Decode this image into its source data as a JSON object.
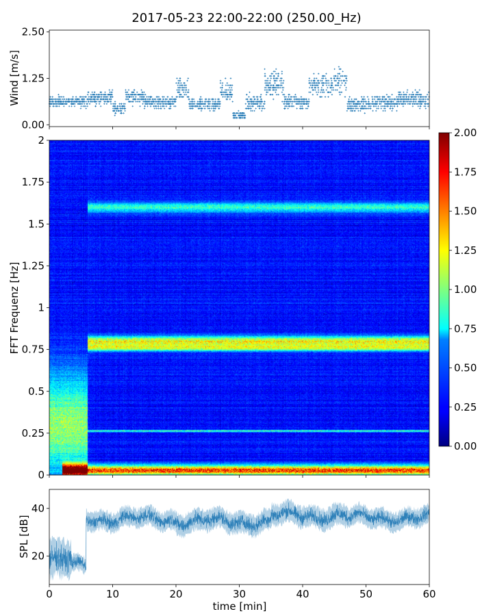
{
  "title": "2017-05-23 22:00-22:00 (250.00_Hz)",
  "chart_data": [
    {
      "type": "scatter",
      "name": "wind",
      "ylabel": "Wind [m/s]",
      "xlim": [
        0,
        60
      ],
      "ylim": [
        -0.05,
        2.55
      ],
      "yticks": [
        0.0,
        1.25,
        2.5
      ],
      "ytick_labels": [
        "0.00",
        "1.25",
        "2.50"
      ],
      "marker_color": "#1f77b4",
      "marker": "+",
      "resolution_m_s": 0.0625,
      "segments": [
        {
          "x": [
            0,
            6
          ],
          "mean": 0.62,
          "spread": 0.22
        },
        {
          "x": [
            6,
            10
          ],
          "mean": 0.72,
          "spread": 0.28
        },
        {
          "x": [
            10,
            12
          ],
          "mean": 0.45,
          "spread": 0.25
        },
        {
          "x": [
            12,
            15
          ],
          "mean": 0.75,
          "spread": 0.3
        },
        {
          "x": [
            15,
            20
          ],
          "mean": 0.6,
          "spread": 0.25
        },
        {
          "x": [
            20,
            22
          ],
          "mean": 0.95,
          "spread": 0.4
        },
        {
          "x": [
            22,
            27
          ],
          "mean": 0.55,
          "spread": 0.25
        },
        {
          "x": [
            27,
            29
          ],
          "mean": 0.9,
          "spread": 0.45
        },
        {
          "x": [
            29,
            31
          ],
          "mean": 0.25,
          "spread": 0.15
        },
        {
          "x": [
            31,
            34
          ],
          "mean": 0.6,
          "spread": 0.3
        },
        {
          "x": [
            34,
            37
          ],
          "mean": 1.1,
          "spread": 0.55
        },
        {
          "x": [
            37,
            41
          ],
          "mean": 0.6,
          "spread": 0.3
        },
        {
          "x": [
            41,
            45
          ],
          "mean": 1.05,
          "spread": 0.45
        },
        {
          "x": [
            45,
            47
          ],
          "mean": 1.2,
          "spread": 0.55
        },
        {
          "x": [
            47,
            50
          ],
          "mean": 0.55,
          "spread": 0.3
        },
        {
          "x": [
            50,
            55
          ],
          "mean": 0.6,
          "spread": 0.3
        },
        {
          "x": [
            55,
            58
          ],
          "mean": 0.7,
          "spread": 0.35
        },
        {
          "x": [
            58,
            60
          ],
          "mean": 0.65,
          "spread": 0.35
        }
      ]
    },
    {
      "type": "heatmap",
      "name": "spectrogram",
      "ylabel": "FFT Frequenz [Hz]",
      "xlim": [
        0,
        60
      ],
      "ylim": [
        0,
        2
      ],
      "yticks": [
        0,
        0.25,
        0.5,
        0.75,
        1,
        1.25,
        1.5,
        1.75,
        2
      ],
      "ytick_labels": [
        "0",
        "0.25",
        "0.5",
        "0.75",
        "1",
        "1.25",
        "1.5",
        "1.75",
        "2"
      ],
      "colormap": "jet",
      "clim": [
        0,
        2
      ],
      "colorbar_ticks": [
        0.0,
        0.25,
        0.5,
        0.75,
        1.0,
        1.25,
        1.5,
        1.75,
        2.0
      ],
      "colorbar_tick_labels": [
        "0.00",
        "0.25",
        "0.50",
        "0.75",
        "1.00",
        "1.25",
        "1.50",
        "1.75",
        "2.00"
      ],
      "background_level": 0.28,
      "bands": [
        {
          "freq": 0.8,
          "width": 0.03,
          "level": 1.0,
          "t": [
            6,
            60
          ]
        },
        {
          "freq": 0.76,
          "width": 0.02,
          "level": 0.75,
          "t": [
            6,
            60
          ]
        },
        {
          "freq": 1.6,
          "width": 0.03,
          "level": 0.6,
          "t": [
            6,
            60
          ]
        },
        {
          "freq": 0.265,
          "width": 0.006,
          "level": 0.65,
          "t": [
            6,
            60
          ]
        },
        {
          "freq": 0.03,
          "width": 0.03,
          "level": 1.4,
          "t": [
            6,
            60
          ]
        },
        {
          "freq": 0.03,
          "width": 0.035,
          "level": 2.0,
          "t": [
            2,
            6
          ]
        },
        {
          "freq": 0.3,
          "width": 0.3,
          "level": 0.8,
          "t": [
            0,
            6
          ]
        }
      ]
    },
    {
      "type": "area",
      "name": "spl",
      "ylabel": "SPL [dB]",
      "xlabel": "time [min]",
      "xlim": [
        0,
        60
      ],
      "ylim": [
        8,
        48
      ],
      "xticks": [
        0,
        10,
        20,
        30,
        40,
        50,
        60
      ],
      "yticks": [
        20,
        40
      ],
      "line_color": "#1f77b4",
      "segments": [
        {
          "x": [
            0,
            3.5
          ],
          "mean": 18,
          "spread": 9
        },
        {
          "x": [
            3.5,
            5.8
          ],
          "mean": 16,
          "spread": 4
        },
        {
          "x": [
            6,
            20
          ],
          "mean": 35.5,
          "spread": 4.5
        },
        {
          "x": [
            20,
            35
          ],
          "mean": 34.5,
          "spread": 5
        },
        {
          "x": [
            35,
            47
          ],
          "mean": 37,
          "spread": 5
        },
        {
          "x": [
            47,
            60
          ],
          "mean": 36,
          "spread": 4.5
        }
      ]
    }
  ]
}
